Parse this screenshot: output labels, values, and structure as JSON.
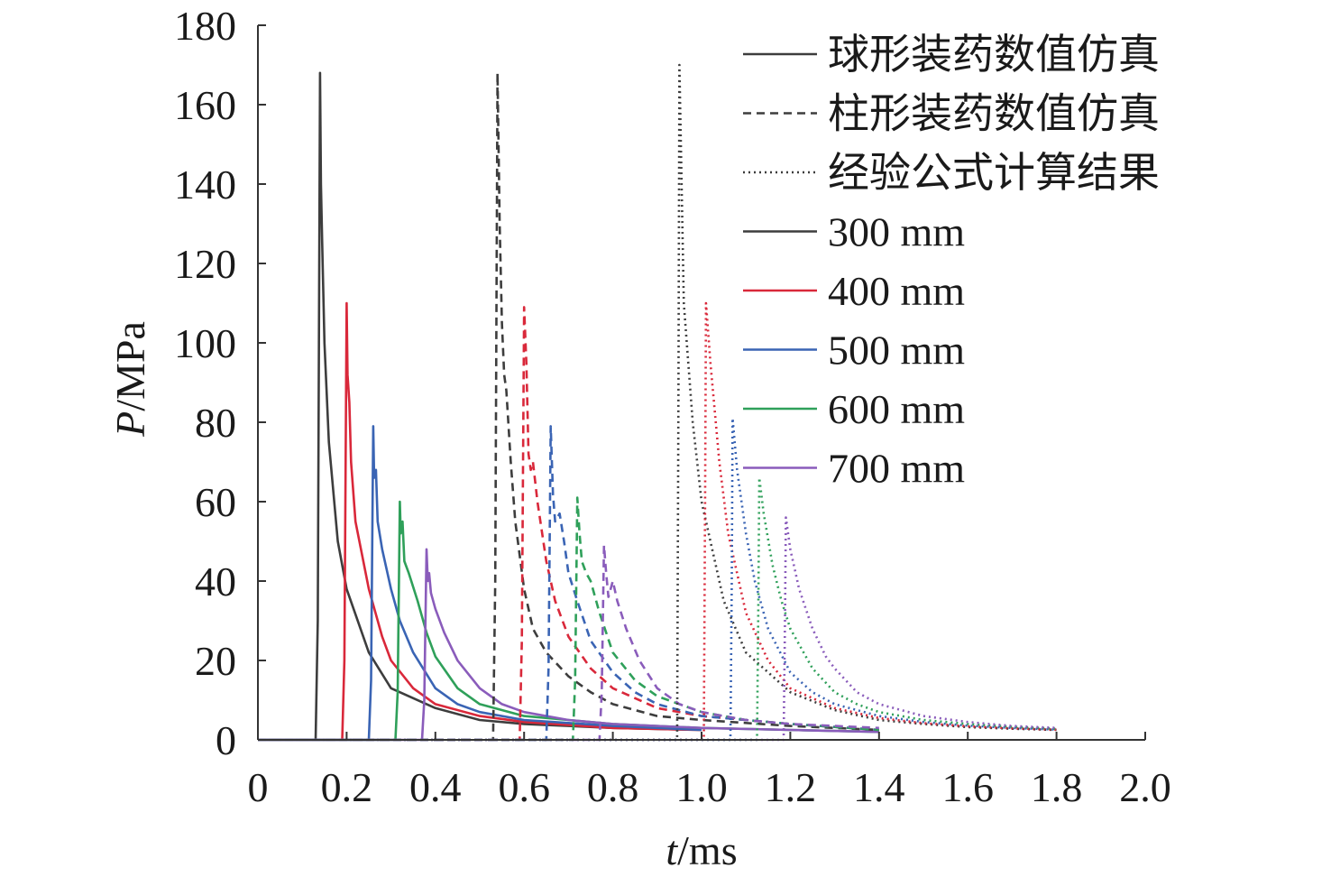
{
  "chart_data": {
    "type": "line",
    "xlabel": "t/ms",
    "ylabel": "P/MPa",
    "xlabel_italic": "t",
    "xlabel_unit": "/ms",
    "ylabel_italic": "P",
    "ylabel_unit": "/MPa",
    "xlim": [
      0,
      2.0
    ],
    "ylim": [
      0,
      180
    ],
    "x_ticks": [
      "0",
      "0.2",
      "0.4",
      "0.6",
      "0.8",
      "1.0",
      "1.2",
      "1.4",
      "1.6",
      "1.8",
      "2.0"
    ],
    "y_ticks": [
      "0",
      "20",
      "40",
      "60",
      "80",
      "100",
      "120",
      "140",
      "160",
      "180"
    ],
    "grid": false,
    "legend_position": "top-right",
    "legend": {
      "styles": [
        {
          "label": "球形装药数值仿真",
          "dash": "solid"
        },
        {
          "label": "柱形装药数值仿真",
          "dash": "dashed"
        },
        {
          "label": "经验公式计算结果",
          "dash": "dotted"
        }
      ],
      "distances": [
        {
          "label": "300 mm",
          "color": "#3d3d3d"
        },
        {
          "label": "400 mm",
          "color": "#d9283a"
        },
        {
          "label": "500 mm",
          "color": "#3a64b4"
        },
        {
          "label": "600 mm",
          "color": "#2fa05a"
        },
        {
          "label": "700 mm",
          "color": "#8a5cbb"
        }
      ]
    },
    "series": [
      {
        "group": "球形装药数值仿真",
        "distance": "300 mm",
        "dash": "solid",
        "color": "#3d3d3d",
        "x": [
          0,
          0.13,
          0.135,
          0.14,
          0.142,
          0.145,
          0.15,
          0.16,
          0.18,
          0.2,
          0.25,
          0.3,
          0.4,
          0.5,
          0.6,
          0.7,
          0.8,
          1.0
        ],
        "y": [
          0,
          0,
          30,
          168,
          140,
          125,
          100,
          75,
          50,
          38,
          22,
          13,
          8,
          5,
          4,
          3.5,
          3,
          2.5
        ]
      },
      {
        "group": "球形装药数值仿真",
        "distance": "400 mm",
        "dash": "solid",
        "color": "#d9283a",
        "x": [
          0,
          0.19,
          0.195,
          0.2,
          0.202,
          0.206,
          0.21,
          0.22,
          0.25,
          0.28,
          0.3,
          0.35,
          0.4,
          0.5,
          0.6,
          0.8,
          1.0
        ],
        "y": [
          0,
          0,
          20,
          110,
          92,
          85,
          70,
          55,
          38,
          26,
          20,
          13,
          9,
          6,
          4.5,
          3,
          2.5
        ]
      },
      {
        "group": "球形装药数值仿真",
        "distance": "500 mm",
        "dash": "solid",
        "color": "#3a64b4",
        "x": [
          0,
          0.25,
          0.255,
          0.26,
          0.262,
          0.266,
          0.27,
          0.28,
          0.3,
          0.32,
          0.35,
          0.4,
          0.45,
          0.5,
          0.6,
          0.8,
          1.0
        ],
        "y": [
          0,
          0,
          15,
          79,
          66,
          68,
          55,
          48,
          38,
          30,
          22,
          13,
          9,
          7,
          5,
          3.5,
          2.5
        ]
      },
      {
        "group": "球形装药数值仿真",
        "distance": "600 mm",
        "dash": "solid",
        "color": "#2fa05a",
        "x": [
          0,
          0.31,
          0.315,
          0.32,
          0.322,
          0.326,
          0.33,
          0.34,
          0.36,
          0.38,
          0.4,
          0.45,
          0.5,
          0.6,
          0.8,
          1.0,
          1.2,
          1.4
        ],
        "y": [
          0,
          0,
          12,
          60,
          52,
          55,
          45,
          42,
          35,
          27,
          21,
          13,
          9,
          6,
          4,
          3,
          2.5,
          2
        ]
      },
      {
        "group": "球形装药数值仿真",
        "distance": "700 mm",
        "dash": "solid",
        "color": "#8a5cbb",
        "x": [
          0,
          0.37,
          0.375,
          0.38,
          0.383,
          0.386,
          0.39,
          0.4,
          0.42,
          0.45,
          0.5,
          0.55,
          0.6,
          0.7,
          0.8,
          1.0,
          1.2,
          1.4
        ],
        "y": [
          0,
          0,
          10,
          48,
          40,
          42,
          37,
          33,
          27,
          20,
          13,
          9,
          7,
          5,
          4,
          3,
          2.5,
          2
        ]
      },
      {
        "group": "柱形装药数值仿真",
        "distance": "300 mm",
        "dash": "dashed",
        "color": "#3d3d3d",
        "x": [
          0,
          0.53,
          0.535,
          0.54,
          0.545,
          0.55,
          0.555,
          0.56,
          0.57,
          0.58,
          0.6,
          0.62,
          0.65,
          0.7,
          0.75,
          0.8,
          0.9,
          1.0,
          1.2,
          1.4
        ],
        "y": [
          0,
          0,
          40,
          168,
          130,
          105,
          92,
          88,
          70,
          55,
          38,
          28,
          22,
          16,
          12,
          9,
          6,
          5,
          3.5,
          2.5
        ]
      },
      {
        "group": "柱形装药数值仿真",
        "distance": "400 mm",
        "dash": "dashed",
        "color": "#d9283a",
        "x": [
          0,
          0.59,
          0.595,
          0.6,
          0.605,
          0.61,
          0.615,
          0.62,
          0.63,
          0.65,
          0.67,
          0.7,
          0.75,
          0.8,
          0.9,
          1.0,
          1.2,
          1.4
        ],
        "y": [
          0,
          0,
          25,
          109,
          95,
          72,
          68,
          70,
          60,
          45,
          35,
          26,
          18,
          13,
          8,
          6,
          4,
          2.5
        ]
      },
      {
        "group": "柱形装药数值仿真",
        "distance": "500 mm",
        "dash": "dashed",
        "color": "#3a64b4",
        "x": [
          0,
          0.65,
          0.655,
          0.66,
          0.665,
          0.67,
          0.68,
          0.69,
          0.7,
          0.72,
          0.75,
          0.8,
          0.85,
          0.9,
          1.0,
          1.2,
          1.4
        ],
        "y": [
          0,
          0,
          18,
          79,
          62,
          55,
          57,
          50,
          42,
          35,
          25,
          17,
          12,
          9,
          6,
          4,
          2.5
        ]
      },
      {
        "group": "柱形装药数值仿真",
        "distance": "600 mm",
        "dash": "dashed",
        "color": "#2fa05a",
        "x": [
          0,
          0.71,
          0.715,
          0.72,
          0.725,
          0.73,
          0.74,
          0.75,
          0.77,
          0.8,
          0.85,
          0.9,
          1.0,
          1.1,
          1.2,
          1.4
        ],
        "y": [
          0,
          0,
          15,
          61,
          52,
          45,
          42,
          40,
          32,
          22,
          15,
          11,
          7,
          5,
          4,
          2.5
        ]
      },
      {
        "group": "柱形装药数值仿真",
        "distance": "700 mm",
        "dash": "dashed",
        "color": "#8a5cbb",
        "x": [
          0,
          0.77,
          0.775,
          0.78,
          0.785,
          0.79,
          0.8,
          0.81,
          0.83,
          0.86,
          0.9,
          0.95,
          1.0,
          1.1,
          1.2,
          1.4
        ],
        "y": [
          0,
          0,
          12,
          49,
          42,
          36,
          40,
          35,
          28,
          20,
          13,
          9,
          7,
          5,
          4,
          3
        ]
      },
      {
        "group": "经验公式计算结果",
        "distance": "300 mm",
        "dash": "dotted",
        "color": "#3d3d3d",
        "x": [
          0,
          0.945,
          0.948,
          0.95,
          0.96,
          0.98,
          1.0,
          1.05,
          1.1,
          1.2,
          1.3,
          1.4,
          1.5,
          1.6,
          1.7,
          1.8
        ],
        "y": [
          0,
          0,
          90,
          170,
          110,
          80,
          60,
          35,
          22,
          12,
          7.5,
          5,
          4,
          3.2,
          2.8,
          2.5
        ]
      },
      {
        "group": "经验公式计算结果",
        "distance": "400 mm",
        "dash": "dotted",
        "color": "#d9283a",
        "x": [
          0,
          1.005,
          1.008,
          1.01,
          1.02,
          1.04,
          1.06,
          1.1,
          1.15,
          1.2,
          1.3,
          1.4,
          1.5,
          1.6,
          1.7,
          1.8
        ],
        "y": [
          0,
          0,
          60,
          110,
          95,
          70,
          52,
          32,
          20,
          13,
          8,
          5.5,
          4.2,
          3.4,
          2.9,
          2.6
        ]
      },
      {
        "group": "经验公式计算结果",
        "distance": "500 mm",
        "dash": "dotted",
        "color": "#3a64b4",
        "x": [
          0,
          1.065,
          1.068,
          1.07,
          1.08,
          1.1,
          1.12,
          1.15,
          1.2,
          1.25,
          1.3,
          1.4,
          1.5,
          1.6,
          1.7,
          1.8
        ],
        "y": [
          0,
          0,
          40,
          81,
          68,
          52,
          40,
          28,
          17,
          12,
          9,
          6,
          4.5,
          3.6,
          3,
          2.6
        ]
      },
      {
        "group": "经验公式计算结果",
        "distance": "600 mm",
        "dash": "dotted",
        "color": "#2fa05a",
        "x": [
          0,
          1.125,
          1.128,
          1.13,
          1.14,
          1.16,
          1.18,
          1.2,
          1.25,
          1.3,
          1.35,
          1.4,
          1.5,
          1.6,
          1.7,
          1.8
        ],
        "y": [
          0,
          0,
          35,
          66,
          57,
          44,
          35,
          28,
          18,
          12,
          9,
          7,
          5,
          4,
          3.3,
          2.8
        ]
      },
      {
        "group": "经验公式计算结果",
        "distance": "700 mm",
        "dash": "dotted",
        "color": "#8a5cbb",
        "x": [
          0,
          1.185,
          1.188,
          1.19,
          1.2,
          1.22,
          1.25,
          1.28,
          1.3,
          1.35,
          1.4,
          1.5,
          1.6,
          1.7,
          1.8
        ],
        "y": [
          0,
          0,
          30,
          56,
          48,
          38,
          28,
          21,
          18,
          12,
          9,
          6,
          4.5,
          3.5,
          3
        ]
      }
    ]
  }
}
